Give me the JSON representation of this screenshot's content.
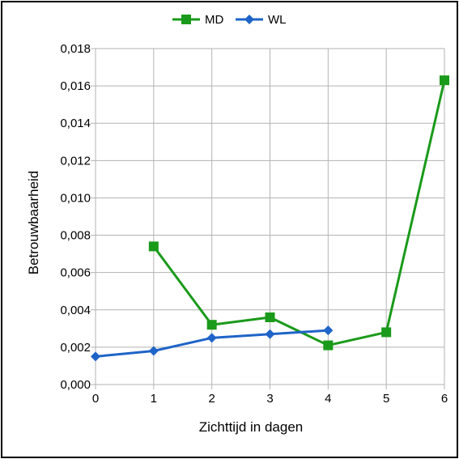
{
  "chart_data": {
    "type": "line",
    "xlabel": "Zichttijd in dagen",
    "ylabel": "Betrouwbaarheid",
    "xlim": [
      0,
      6
    ],
    "ylim": [
      0,
      0.018
    ],
    "x_ticks": [
      "0",
      "1",
      "2",
      "3",
      "4",
      "5",
      "6"
    ],
    "y_ticks": [
      "0,000",
      "0,002",
      "0,004",
      "0,006",
      "0,008",
      "0,010",
      "0,012",
      "0,014",
      "0,016",
      "0,018"
    ],
    "y_tick_values": [
      0,
      0.002,
      0.004,
      0.006,
      0.008,
      0.01,
      0.012,
      0.014,
      0.016,
      0.018
    ],
    "grid": true,
    "legend_position": "top",
    "series": [
      {
        "name": "MD",
        "color": "#1a9a1a",
        "marker": "square",
        "x": [
          1,
          2,
          3,
          4,
          5,
          6
        ],
        "y": [
          0.0074,
          0.0032,
          0.0036,
          0.0021,
          0.0028,
          0.0163
        ]
      },
      {
        "name": "WL",
        "color": "#1f64c8",
        "marker": "diamond",
        "x": [
          0,
          1,
          2,
          3,
          4
        ],
        "y": [
          0.0015,
          0.0018,
          0.0025,
          0.0027,
          0.0029
        ]
      }
    ]
  }
}
